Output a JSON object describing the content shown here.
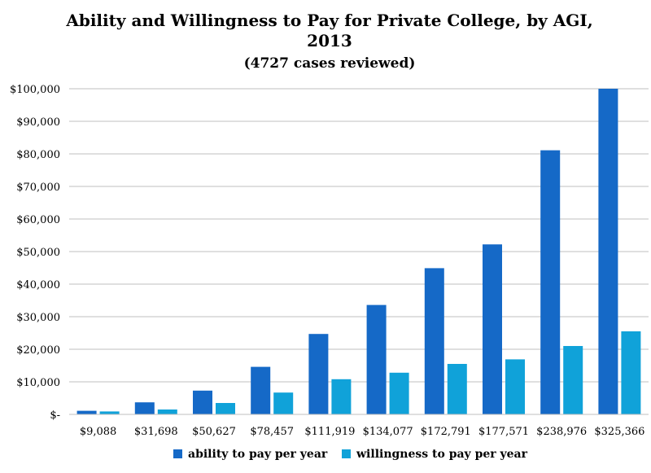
{
  "chart_data": {
    "type": "bar",
    "title_lines": [
      "Ability and Willingness to Pay for Private College, by AGI,",
      "2013"
    ],
    "subtitle": "(4727 cases reviewed)",
    "categories": [
      "$9,088",
      "$31,698",
      "$50,627",
      "$78,457",
      "$111,919",
      "$134,077",
      "$172,791",
      "$177,571",
      "$238,976",
      "$325,366"
    ],
    "series": [
      {
        "name": "ability to pay per year",
        "color": "#1569c7",
        "values": [
          1100,
          3700,
          7300,
          14600,
          24700,
          33600,
          44900,
          52200,
          81100,
          100000
        ]
      },
      {
        "name": "willingness to pay per year",
        "color": "#10a2d9",
        "values": [
          900,
          1500,
          3500,
          6700,
          10800,
          12800,
          15500,
          16900,
          21000,
          25500
        ]
      }
    ],
    "y_ticks": [
      "$-",
      "$10,000",
      "$20,000",
      "$30,000",
      "$40,000",
      "$50,000",
      "$60,000",
      "$70,000",
      "$80,000",
      "$90,000",
      "$100,000"
    ],
    "ylim": [
      0,
      100000
    ],
    "grid": true,
    "legend_position": "bottom"
  }
}
